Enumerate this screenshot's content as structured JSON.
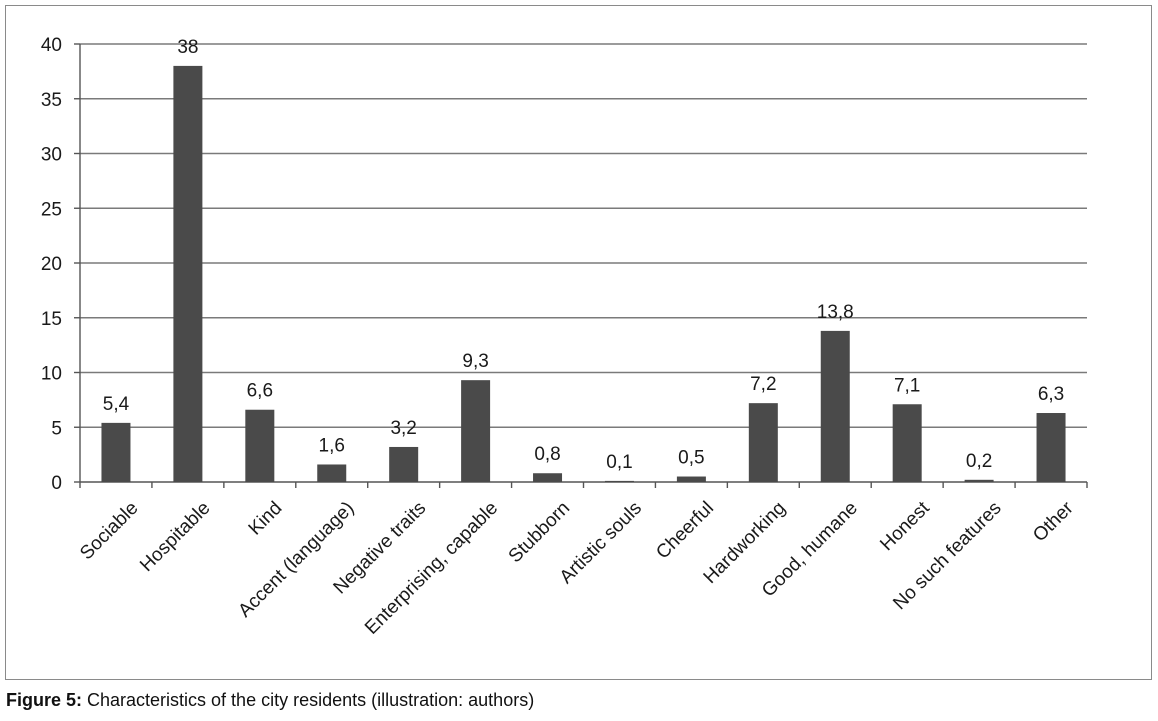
{
  "chart_data": {
    "type": "bar",
    "categories": [
      "Sociable",
      "Hospitable",
      "Kind",
      "Accent (language)",
      "Negative traits",
      "Enterprising, capable",
      "Stubborn",
      "Artistic souls",
      "Cheerful",
      "Hardworking",
      "Good, humane",
      "Honest",
      "No such features",
      "Other"
    ],
    "values": [
      5.4,
      38,
      6.6,
      1.6,
      3.2,
      9.3,
      0.8,
      0.1,
      0.5,
      7.2,
      13.8,
      7.1,
      0.2,
      6.3
    ],
    "value_labels": [
      "5,4",
      "38",
      "6,6",
      "1,6",
      "3,2",
      "9,3",
      "0,8",
      "0,1",
      "0,5",
      "7,2",
      "13,8",
      "7,1",
      "0,2",
      "6,3"
    ],
    "y_ticks": [
      0,
      5,
      10,
      15,
      20,
      25,
      30,
      35,
      40
    ],
    "ylim": [
      0,
      40
    ],
    "grid": true,
    "bar_color": "#4a4a4a",
    "title": "",
    "xlabel": "",
    "ylabel": ""
  },
  "caption": {
    "label": "Figure 5:",
    "text": " Characteristics of the city residents (illustration: authors)"
  }
}
